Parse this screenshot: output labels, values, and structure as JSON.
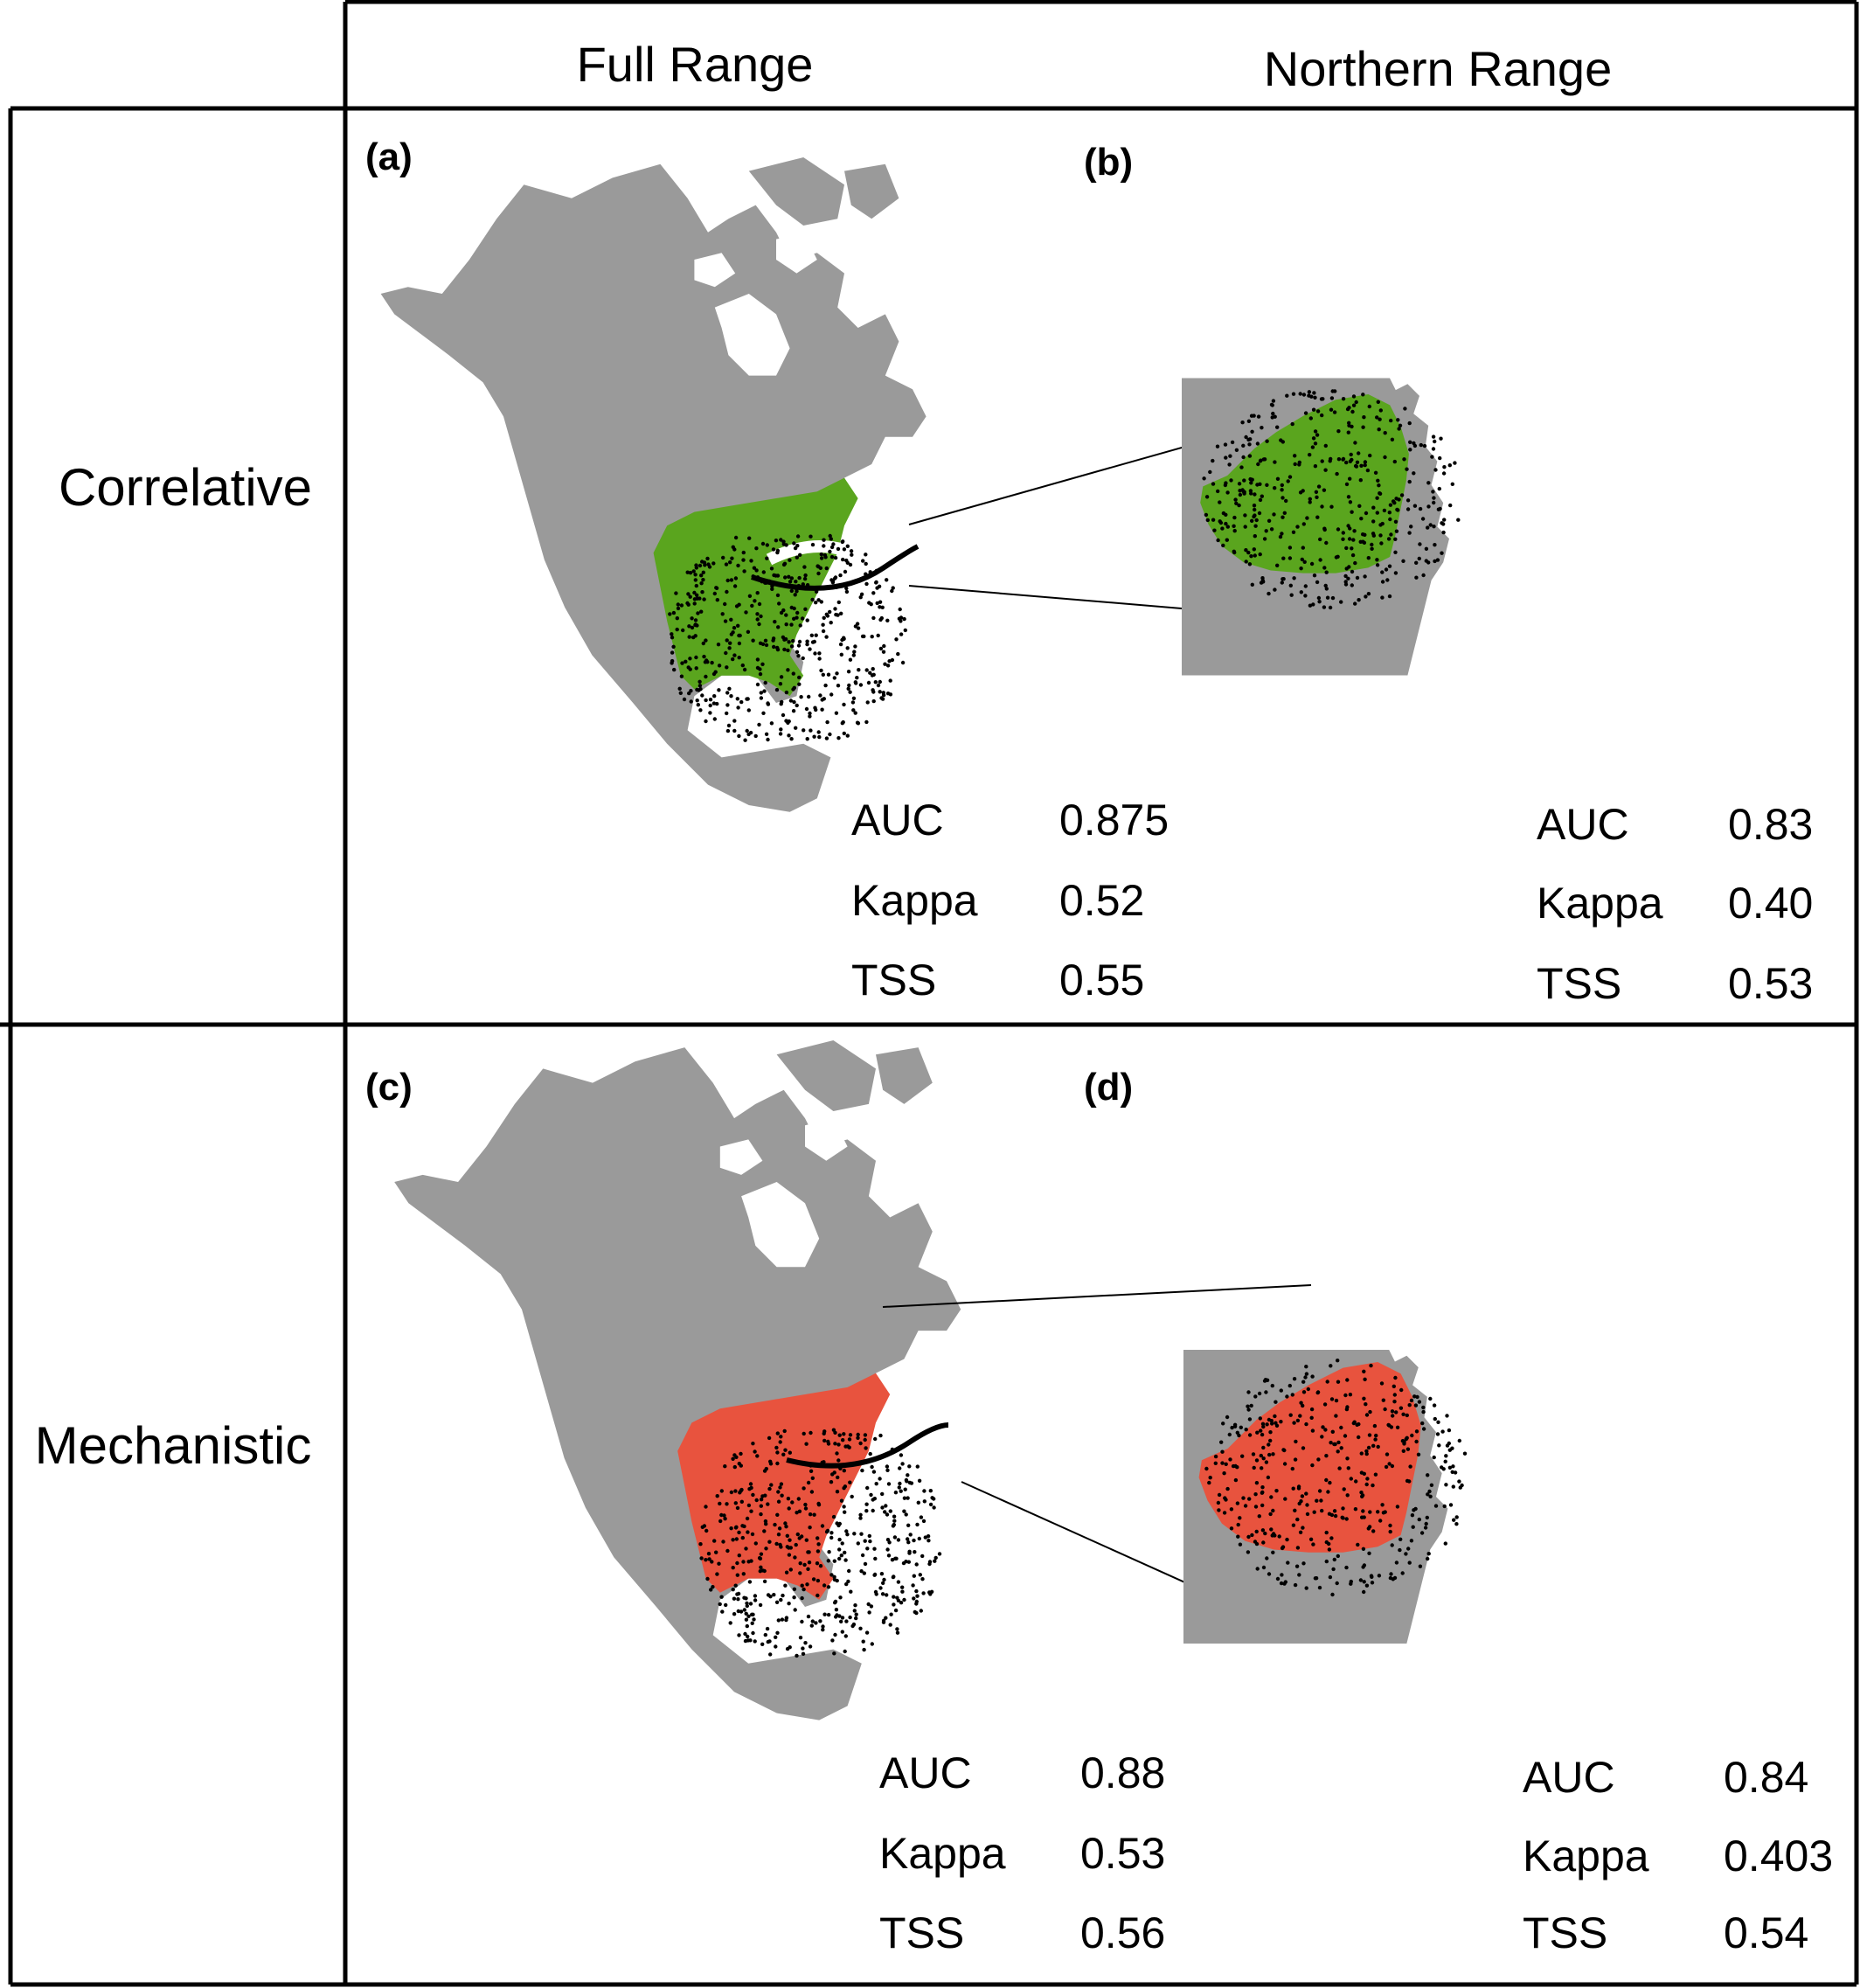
{
  "columns": [
    "Full Range",
    "Northern Range"
  ],
  "rows": [
    "Correlative",
    "Mechanistic"
  ],
  "colors": {
    "land": "#9a9a9a",
    "correlative_fill": "#5aa51e",
    "mechanistic_fill": "#e8533e",
    "occurrence_points": "#000000",
    "grid_lines": "#000000"
  },
  "panels": [
    {
      "label": "(a)",
      "row": "Correlative",
      "column": "Full Range",
      "stats": [
        {
          "name": "AUC",
          "value": "0.875"
        },
        {
          "name": "Kappa",
          "value": "0.52"
        },
        {
          "name": "TSS",
          "value": "0.55"
        }
      ]
    },
    {
      "label": "(b)",
      "row": "Correlative",
      "column": "Northern Range",
      "stats": [
        {
          "name": "AUC",
          "value": "0.83"
        },
        {
          "name": "Kappa",
          "value": "0.40"
        },
        {
          "name": "TSS",
          "value": "0.53"
        }
      ]
    },
    {
      "label": "(c)",
      "row": "Mechanistic",
      "column": "Full Range",
      "stats": [
        {
          "name": "AUC",
          "value": "0.88"
        },
        {
          "name": "Kappa",
          "value": "0.53"
        },
        {
          "name": "TSS",
          "value": "0.56"
        }
      ]
    },
    {
      "label": "(d)",
      "row": "Mechanistic",
      "column": "Northern Range",
      "stats": [
        {
          "name": "AUC",
          "value": "0.84"
        },
        {
          "name": "Kappa",
          "value": "0.403"
        },
        {
          "name": "TSS",
          "value": "0.54"
        }
      ]
    }
  ]
}
